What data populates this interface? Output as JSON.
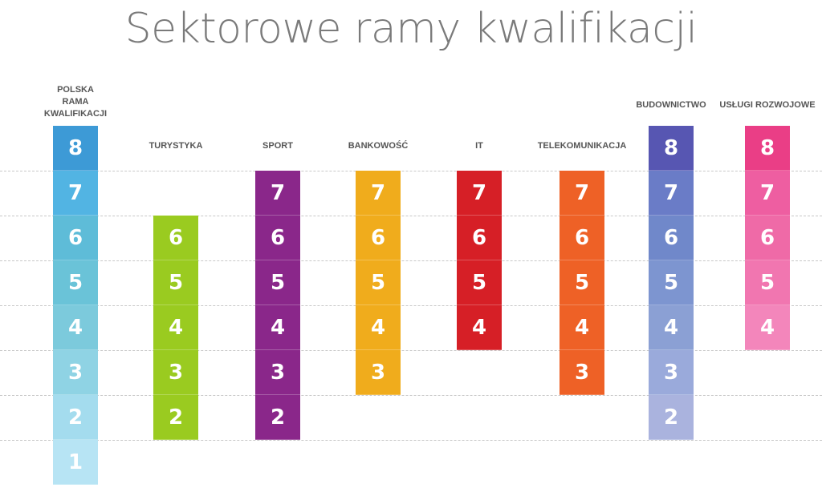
{
  "title": "Sektorowe ramy kwalifikacji",
  "columns": [
    {
      "label_lines": [
        "POLSKA",
        "RAMA",
        "KWALIFIKACJI"
      ],
      "levels": [
        8,
        7,
        6,
        5,
        4,
        3,
        2,
        1
      ],
      "colors": {
        "8": "#3d9ad6",
        "7": "#52b4e3",
        "6": "#5ebcd8",
        "5": "#6ac3d8",
        "4": "#7ccadc",
        "3": "#8fd3e4",
        "2": "#a4dcee",
        "1": "#b7e4f4"
      }
    },
    {
      "label_lines": [
        "TURYSTYKA"
      ],
      "levels": [
        6,
        5,
        4,
        3,
        2
      ],
      "colors": {
        "6": "#9acb20",
        "5": "#9acb20",
        "4": "#9acb20",
        "3": "#9acb20",
        "2": "#9acb20"
      }
    },
    {
      "label_lines": [
        "SPORT"
      ],
      "levels": [
        7,
        6,
        5,
        4,
        3,
        2
      ],
      "colors": {
        "7": "#8a278a",
        "6": "#8a278a",
        "5": "#8a278a",
        "4": "#8a278a",
        "3": "#8a278a",
        "2": "#8a278a"
      }
    },
    {
      "label_lines": [
        "BANKOWOŚĆ"
      ],
      "levels": [
        7,
        6,
        5,
        4,
        3
      ],
      "colors": {
        "7": "#f0ac1c",
        "6": "#f0ac1c",
        "5": "#f0ac1c",
        "4": "#f0ac1c",
        "3": "#f0ac1c"
      }
    },
    {
      "label_lines": [
        "IT"
      ],
      "levels": [
        7,
        6,
        5,
        4
      ],
      "colors": {
        "7": "#d61f26",
        "6": "#d61f26",
        "5": "#d61f26",
        "4": "#d61f26"
      }
    },
    {
      "label_lines": [
        "TELEKOMUNIKACJA"
      ],
      "levels": [
        7,
        6,
        5,
        4,
        3
      ],
      "colors": {
        "7": "#ee6126",
        "6": "#ee6126",
        "5": "#ee6126",
        "4": "#ee6126",
        "3": "#ee6126"
      }
    },
    {
      "label_lines": [
        "BUDOWNICTWO"
      ],
      "levels": [
        8,
        7,
        6,
        5,
        4,
        3,
        2
      ],
      "colors": {
        "8": "#5756b2",
        "7": "#6a7cc7",
        "6": "#7088ca",
        "5": "#7d95d0",
        "4": "#8ba0d4",
        "3": "#9aaadb",
        "2": "#aab3de"
      }
    },
    {
      "label_lines": [
        "USŁUGI ROZWOJOWE"
      ],
      "levels": [
        8,
        7,
        6,
        5,
        4
      ],
      "colors": {
        "8": "#ea3e86",
        "7": "#ee5ea1",
        "6": "#ef6aa7",
        "5": "#f176b0",
        "4": "#f386bb"
      }
    }
  ]
}
